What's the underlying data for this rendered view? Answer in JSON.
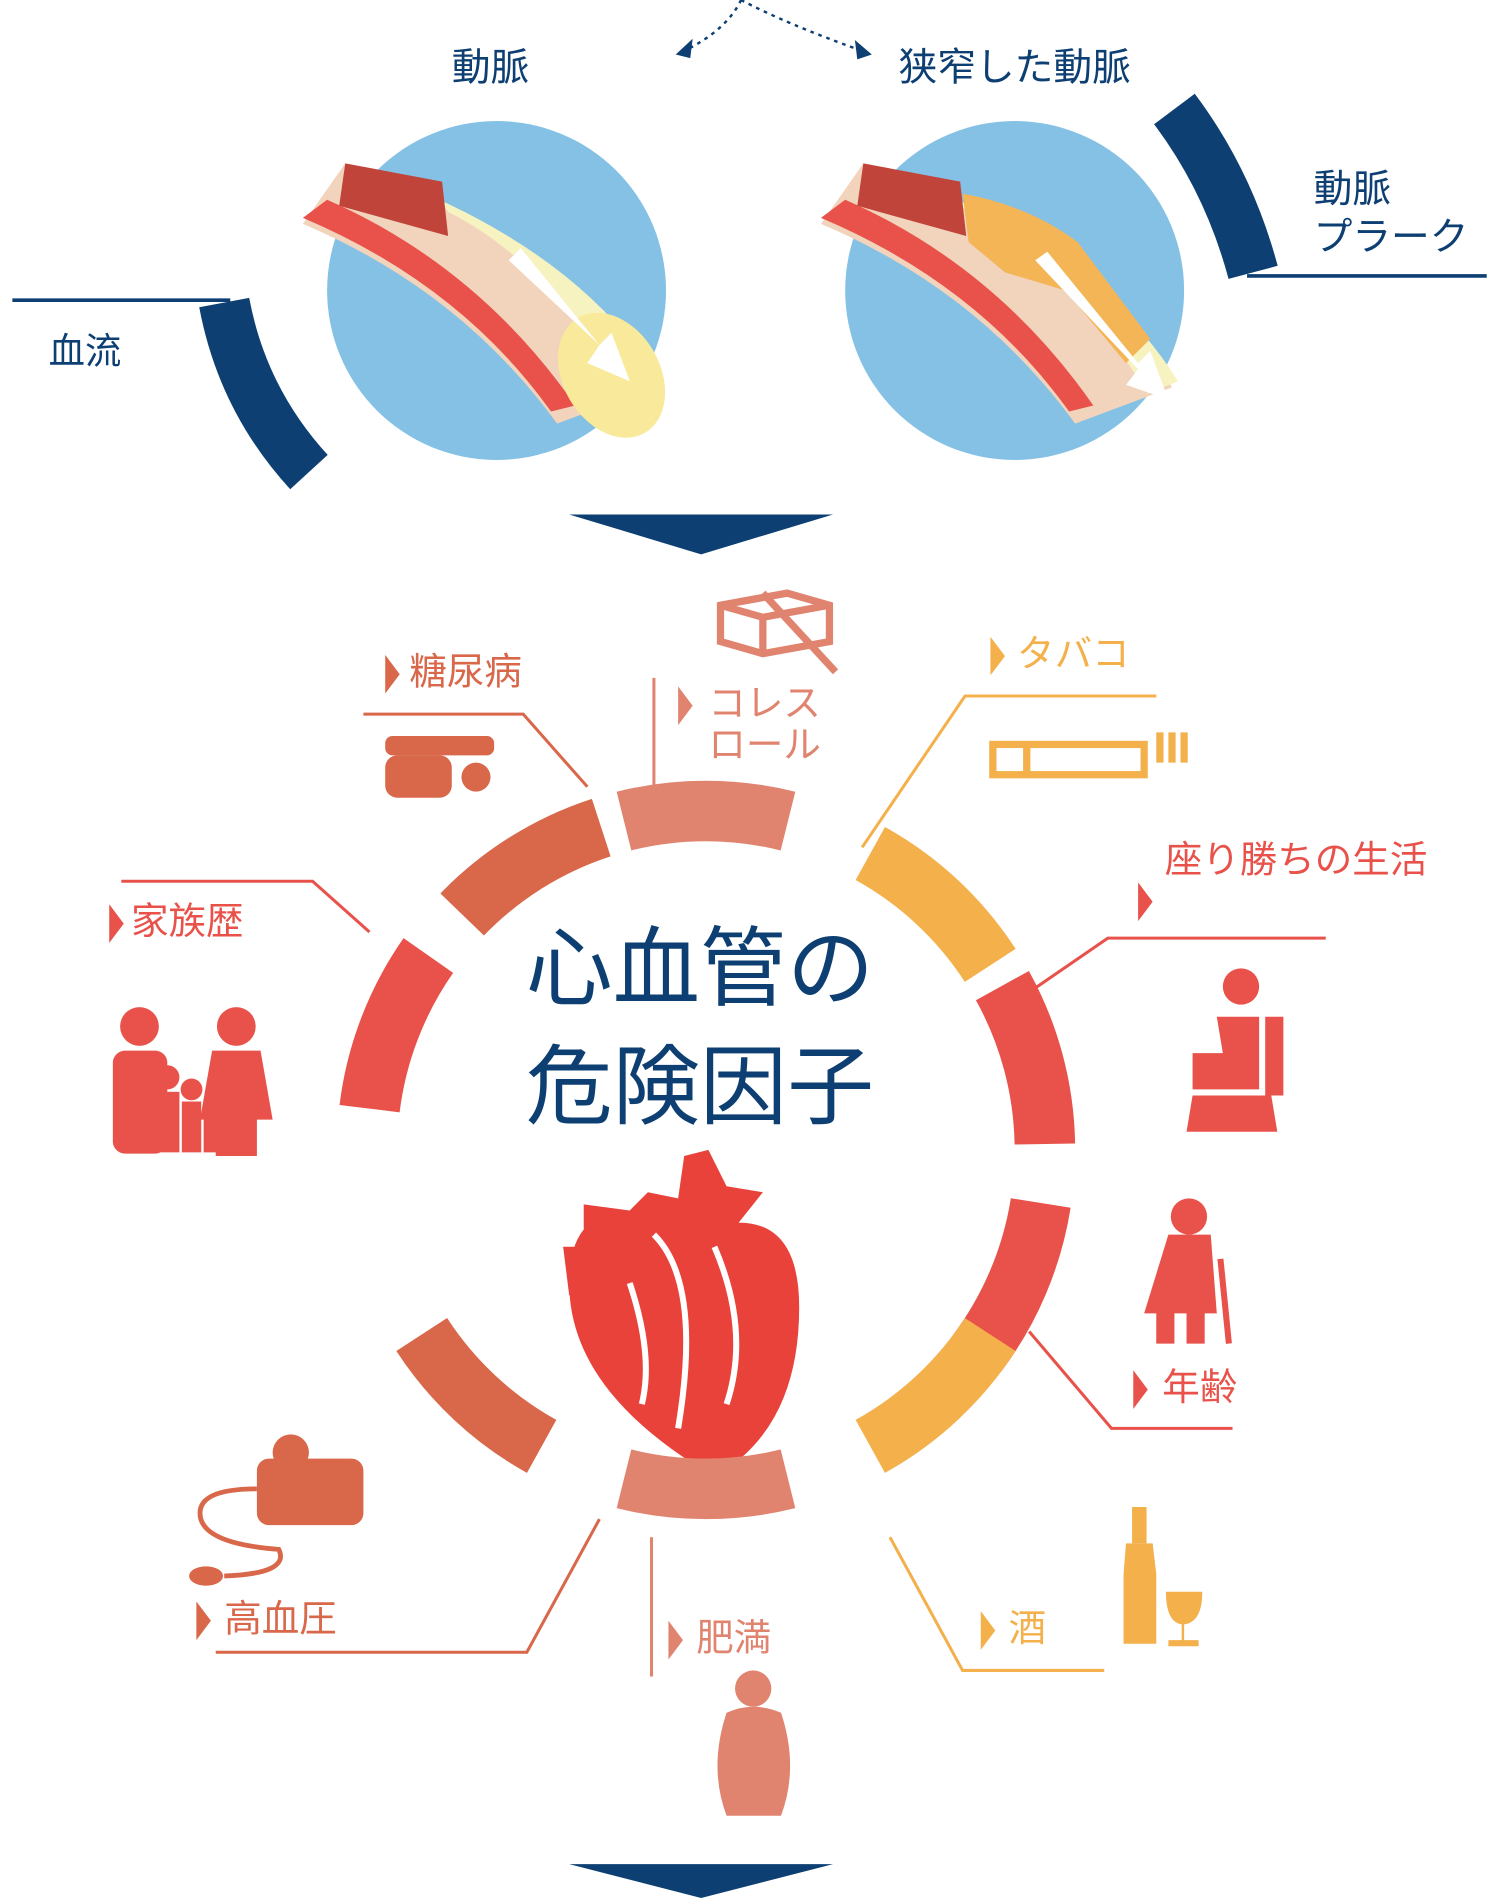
{
  "top": {
    "artery": "動脈",
    "narrowed_artery": "狭窄した動脈",
    "plaque": [
      "動脈",
      "プラーク"
    ],
    "blood_flow": "血流"
  },
  "title": [
    "心血管の",
    "危険因子"
  ],
  "factors": [
    {
      "label": [
        "糖尿病"
      ],
      "color": "#d9674a"
    },
    {
      "label": [
        "コレス",
        "ロール"
      ],
      "color": "#e08470"
    },
    {
      "label": [
        "タバコ"
      ],
      "color": "#f3b04b"
    },
    {
      "label": [
        "座り勝ちの生活"
      ],
      "color": "#e8524a"
    },
    {
      "label": [
        "年齢"
      ],
      "color": "#e8524a"
    },
    {
      "label": [
        "酒"
      ],
      "color": "#f3b04b"
    },
    {
      "label": [
        "肥満"
      ],
      "color": "#e08470"
    },
    {
      "label": [
        "高血圧"
      ],
      "color": "#d9674a"
    },
    {
      "label": [
        "家族歴"
      ],
      "color": "#e8524a"
    }
  ]
}
